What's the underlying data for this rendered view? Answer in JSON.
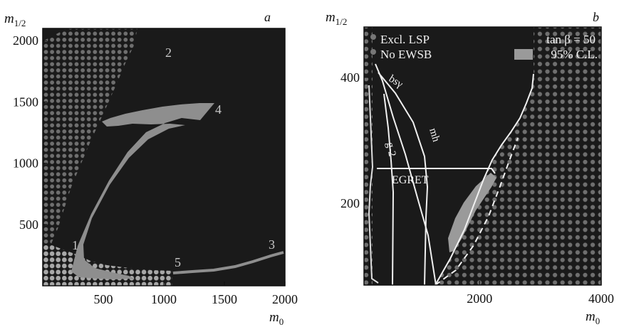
{
  "chart_data": [
    {
      "panel_label": "a",
      "type": "scatter",
      "title": "",
      "xlabel": "m0",
      "ylabel": "m1/2",
      "xlim": [
        0,
        2000
      ],
      "ylim": [
        0,
        2100
      ],
      "xticks": [
        500,
        1000,
        1500,
        2000
      ],
      "yticks": [
        500,
        1000,
        1500,
        2000
      ],
      "colors": {
        "allowed_region": "#1a1a1a",
        "excluded_dots": "#6f6f6f",
        "no_ewsb_dots": "#a8a8a8",
        "contour": "#8e8e8e",
        "text": "#111111",
        "curve_label": "#c8c8c8"
      },
      "series": [
        {
          "values": [
            [
              0,
              2000
            ],
            [
              200,
              2100
            ],
            [
              720,
              2100
            ],
            [
              690,
              1950
            ],
            [
              620,
              1800
            ],
            [
              560,
              1650
            ],
            [
              500,
              1480
            ],
            [
              420,
              1300
            ],
            [
              300,
              1000
            ],
            [
              180,
              700
            ],
            [
              100,
              450
            ],
            [
              60,
              300
            ],
            [
              0,
              300
            ]
          ]
        },
        {
          "values": [
            [
              0,
              300
            ],
            [
              60,
              300
            ],
            [
              150,
              250
            ],
            [
              280,
              200
            ],
            [
              380,
              150
            ],
            [
              520,
              120
            ],
            [
              700,
              100
            ],
            [
              850,
              90
            ],
            [
              900,
              90
            ],
            [
              900,
              0
            ],
            [
              0,
              0
            ]
          ]
        },
        {
          "values": [
            [
              490,
              1490
            ],
            [
              560,
              1530
            ],
            [
              680,
              1570
            ],
            [
              820,
              1610
            ],
            [
              980,
              1640
            ],
            [
              1130,
              1660
            ],
            [
              1280,
              1670
            ],
            [
              1440,
              1480
            ],
            [
              1280,
              1490
            ],
            [
              1150,
              1440
            ],
            [
              1000,
              1360
            ],
            [
              860,
              1210
            ],
            [
              700,
              980
            ],
            [
              560,
              720
            ],
            [
              440,
              510
            ],
            [
              360,
              370
            ],
            [
              350,
              250
            ],
            [
              440,
              150
            ],
            [
              580,
              90
            ],
            [
              700,
              70
            ],
            [
              800,
              70
            ],
            [
              780,
              120
            ],
            [
              620,
              170
            ],
            [
              480,
              210
            ],
            [
              420,
              320
            ],
            [
              440,
              470
            ],
            [
              540,
              700
            ],
            [
              680,
              960
            ],
            [
              830,
              1180
            ],
            [
              980,
              1330
            ],
            [
              1140,
              1420
            ],
            [
              1240,
              1460
            ],
            [
              1100,
              1430
            ],
            [
              940,
              1420
            ],
            [
              780,
              1400
            ],
            [
              660,
              1380
            ],
            [
              560,
              1350
            ],
            [
              480,
              1360
            ]
          ]
        },
        {
          "values": [
            [
              920,
              110
            ],
            [
              1100,
              120
            ],
            [
              1300,
              130
            ],
            [
              1500,
              160
            ],
            [
              1650,
              190
            ],
            [
              1800,
              230
            ],
            [
              1950,
              265
            ],
            [
              2000,
              270
            ]
          ]
        }
      ],
      "annotations": [
        "1",
        "2",
        "3",
        "4",
        "5"
      ]
    },
    {
      "panel_label": "b",
      "type": "scatter",
      "title": "",
      "xlabel": "m0",
      "ylabel": "m1/2",
      "xlim": [
        100,
        4000
      ],
      "ylim": [
        70,
        480
      ],
      "xticks": [
        2000,
        4000
      ],
      "yticks": [
        200,
        400
      ],
      "colors": {
        "allowed_region": "#1a1a1a",
        "excluded_dots": "#6f6f6f",
        "confidence_region": "#9a9a9a",
        "contour": "#f0f0f0",
        "text": "#111111",
        "inner_text": "#f2f2f2"
      },
      "legend": [
        "Excl. LSP",
        "No EWSB"
      ],
      "tanbeta_label": "tan β = 50",
      "cl_label": "95% C.L.",
      "region_labels": {
        "bsg": "bsγ",
        "g2": "g-2",
        "mh": "mh",
        "egret": "EGRET"
      },
      "series": [
        {
          "values": [
            [
              100,
              70
            ],
            [
              100,
              480
            ],
            [
              2220,
              480
            ],
            [
              2200,
              440
            ],
            [
              2130,
              400
            ],
            [
              2080,
              330
            ],
            [
              1990,
              250
            ],
            [
              1900,
              190
            ],
            [
              1800,
              140
            ],
            [
              1640,
              100
            ],
            [
              1400,
              70
            ]
          ]
        },
        {
          "values": [
            [
              1400,
              70
            ],
            [
              1630,
              115
            ],
            [
              1850,
              165
            ],
            [
              2000,
              210
            ],
            [
              2120,
              255
            ],
            [
              2250,
              295
            ],
            [
              2380,
              335
            ],
            [
              2480,
              365
            ],
            [
              2550,
              385
            ],
            [
              2720,
              430
            ],
            [
              2850,
              480
            ],
            [
              4000,
              480
            ],
            [
              4000,
              70
            ]
          ]
        },
        {
          "values": [
            [
              1370,
              150
            ],
            [
              1500,
              185
            ],
            [
              1650,
              210
            ],
            [
              1850,
              225
            ],
            [
              1930,
              215
            ],
            [
              1860,
              185
            ],
            [
              1770,
              155
            ],
            [
              1650,
              120
            ],
            [
              1530,
              100
            ],
            [
              1390,
              110
            ],
            [
              1370,
              150
            ]
          ]
        },
        {
          "values": [
            [
              440,
              450
            ],
            [
              530,
              420
            ],
            [
              700,
              360
            ],
            [
              900,
              300
            ],
            [
              1130,
              230
            ],
            [
              1300,
              170
            ],
            [
              1420,
              110
            ],
            [
              1480,
              70
            ]
          ]
        },
        {
          "values": [
            [
              600,
              400
            ],
            [
              800,
              370
            ],
            [
              1030,
              320
            ],
            [
              1150,
              265
            ],
            [
              1180,
              205
            ],
            [
              1170,
              150
            ],
            [
              1140,
              70
            ]
          ]
        },
        {
          "values": [
            [
              300,
              360
            ],
            [
              420,
              300
            ],
            [
              560,
              240
            ],
            [
              610,
              170
            ],
            [
              600,
              70
            ]
          ]
        },
        {
          "values": [
            [
              350,
              210
            ],
            [
              2030,
              210
            ]
          ]
        },
        {
          "values": [
            [
              1400,
              70
            ],
            [
              1700,
              130
            ],
            [
              2000,
              200
            ],
            [
              2200,
              250
            ],
            [
              2350,
              300
            ],
            [
              2500,
              340
            ],
            [
              2650,
              380
            ],
            [
              2800,
              420
            ]
          ]
        }
      ]
    }
  ]
}
